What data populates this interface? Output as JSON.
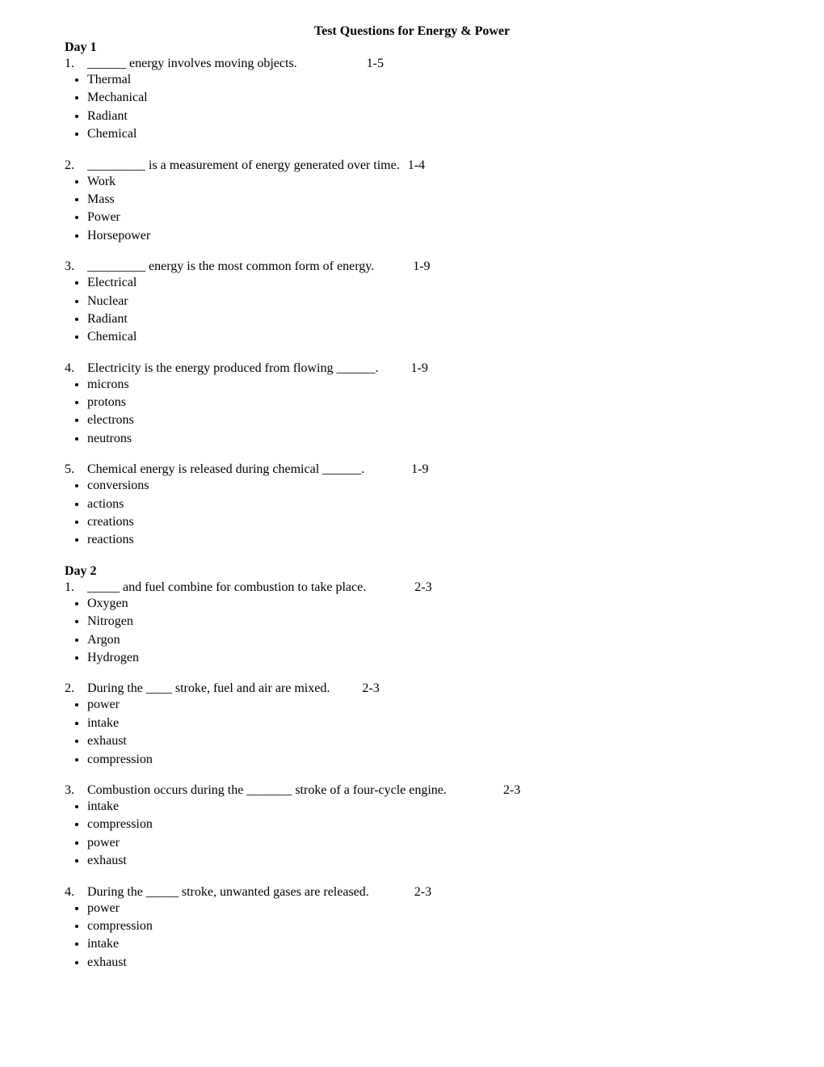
{
  "title": "Test Questions for Energy & Power",
  "days": [
    {
      "heading": "Day 1",
      "questions": [
        {
          "number": "1.",
          "text": "______ energy involves moving objects.",
          "ref": "1-5",
          "ref_margin": "86px",
          "options": [
            "Thermal",
            "Mechanical",
            "Radiant",
            "Chemical"
          ]
        },
        {
          "number": "2.",
          "text": "_________ is a measurement of energy generated over time.",
          "ref": "1-4",
          "ref_margin": "10px",
          "options": [
            "Work",
            "Mass",
            "Power",
            "Horsepower"
          ]
        },
        {
          "number": "3.",
          "text": "_________ energy is the most common form of energy.",
          "ref": "1-9",
          "ref_margin": "48px",
          "options": [
            "Electrical",
            "Nuclear",
            "Radiant",
            "Chemical"
          ]
        },
        {
          "number": "4.",
          "text": "Electricity is the energy produced from flowing ______.",
          "ref": "1-9",
          "ref_margin": "40px",
          "options": [
            "microns",
            "protons",
            "electrons",
            "neutrons"
          ]
        },
        {
          "number": "5.",
          "text": "Chemical energy is released during chemical ______.",
          "ref": "1-9",
          "ref_margin": "58px",
          "options": [
            "conversions",
            "actions",
            "creations",
            "reactions"
          ]
        }
      ]
    },
    {
      "heading": "Day 2",
      "questions": [
        {
          "number": "1.",
          "text": "_____ and fuel combine for combustion to take place.",
          "ref": "2-3",
          "ref_margin": "60px",
          "options": [
            "Oxygen",
            "Nitrogen",
            "Argon",
            "Hydrogen"
          ]
        },
        {
          "number": "2.",
          "text": "During the ____ stroke, fuel and air are mixed.",
          "ref": "2-3",
          "ref_margin": "40px",
          "options": [
            "power",
            "intake",
            "exhaust",
            "compression"
          ]
        },
        {
          "number": "3.",
          "text": "Combustion occurs during the _______ stroke of a four-cycle engine.",
          "ref": "2-3",
          "ref_margin": "70px",
          "options": [
            "intake",
            "compression",
            "power",
            "exhaust"
          ]
        },
        {
          "number": "4.",
          "text": "During the _____ stroke, unwanted gases are released.",
          "ref": "2-3",
          "ref_margin": "56px",
          "options": [
            "power",
            "compression",
            "intake",
            "exhaust"
          ]
        }
      ]
    }
  ]
}
